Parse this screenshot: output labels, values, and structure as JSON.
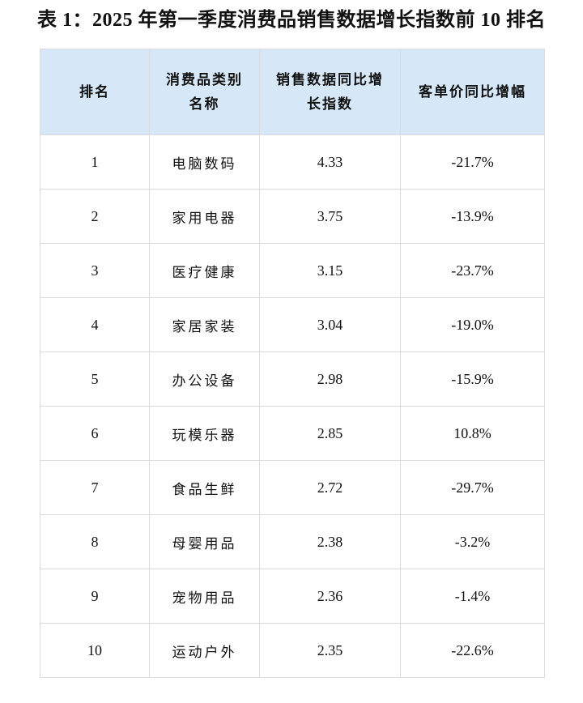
{
  "title": "表 1：2025 年第一季度消费品销售数据增长指数前 10 排名",
  "table": {
    "headers": [
      "排名",
      "消费品类别\n名称",
      "销售数据同比增\n长指数",
      "客单价同比增幅"
    ],
    "rows": [
      {
        "rank": "1",
        "category": "电脑数码",
        "index": "4.33",
        "change": "-21.7%"
      },
      {
        "rank": "2",
        "category": "家用电器",
        "index": "3.75",
        "change": "-13.9%"
      },
      {
        "rank": "3",
        "category": "医疗健康",
        "index": "3.15",
        "change": "-23.7%"
      },
      {
        "rank": "4",
        "category": "家居家装",
        "index": "3.04",
        "change": "-19.0%"
      },
      {
        "rank": "5",
        "category": "办公设备",
        "index": "2.98",
        "change": "-15.9%"
      },
      {
        "rank": "6",
        "category": "玩模乐器",
        "index": "2.85",
        "change": "10.8%"
      },
      {
        "rank": "7",
        "category": "食品生鲜",
        "index": "2.72",
        "change": "-29.7%"
      },
      {
        "rank": "8",
        "category": "母婴用品",
        "index": "2.38",
        "change": "-3.2%"
      },
      {
        "rank": "9",
        "category": "宠物用品",
        "index": "2.36",
        "change": "-1.4%"
      },
      {
        "rank": "10",
        "category": "运动户外",
        "index": "2.35",
        "change": "-22.6%"
      }
    ]
  },
  "colors": {
    "header_bg": "#d6e8f7",
    "border": "#dcdcdc"
  }
}
